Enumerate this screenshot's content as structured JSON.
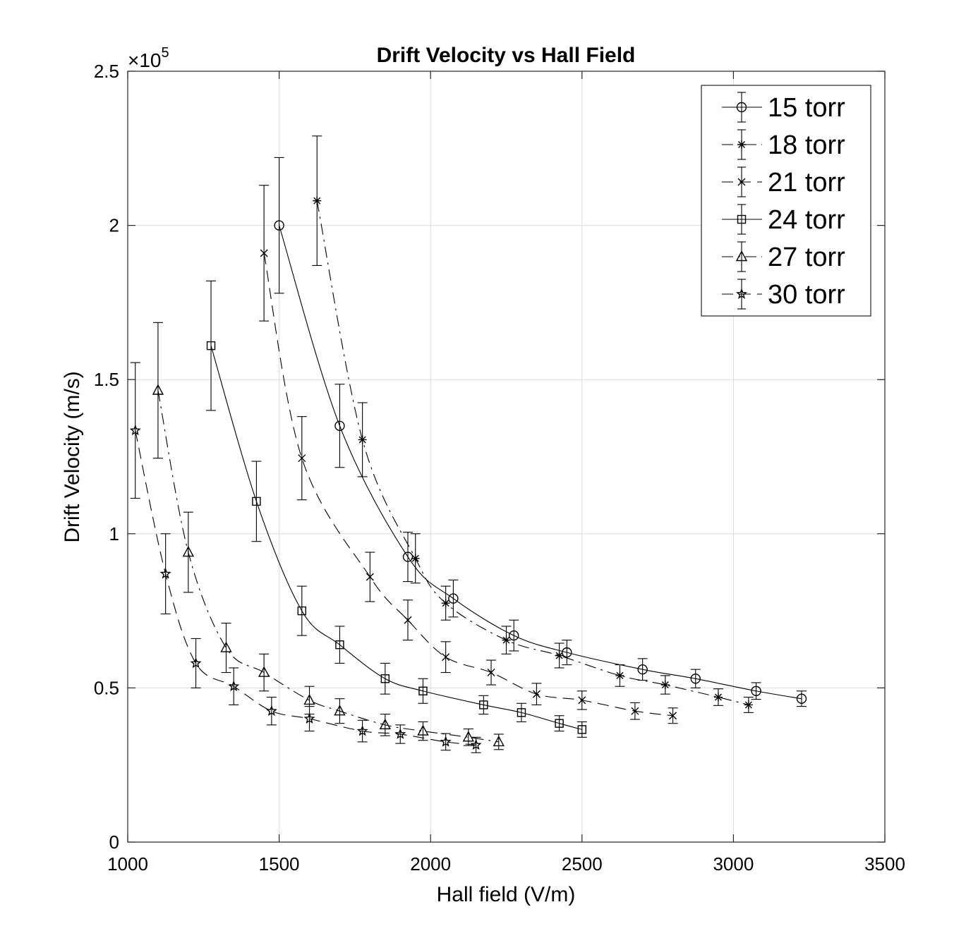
{
  "chart_data": {
    "type": "line",
    "title": "Drift Velocity vs Hall Field",
    "xlabel": "Hall field (V/m)",
    "ylabel": "Drift Velocity (m/s)",
    "xlim": [
      1000,
      3500
    ],
    "ylim": [
      0,
      2.5
    ],
    "y_multiplier": "×10",
    "y_multiplier_exp": "5",
    "x_ticks": [
      1000,
      1500,
      2000,
      2500,
      3000,
      3500
    ],
    "x_tick_labels": [
      "1000",
      "1500",
      "2000",
      "2500",
      "3000",
      "3500"
    ],
    "y_ticks": [
      0,
      0.5,
      1,
      1.5,
      2,
      2.5
    ],
    "y_tick_labels": [
      "0",
      "0.5",
      "1",
      "1.5",
      "2",
      "2.5"
    ],
    "grid": true,
    "legend_position": "top-right",
    "series": [
      {
        "name": "15 torr",
        "marker": "circle",
        "linestyle": "solid",
        "x": [
          1500,
          1700,
          1925,
          2075,
          2275,
          2450,
          2700,
          2875,
          3075,
          3225
        ],
        "y": [
          2.0,
          1.35,
          0.925,
          0.79,
          0.67,
          0.615,
          0.56,
          0.53,
          0.49,
          0.465
        ],
        "err": [
          0.22,
          0.135,
          0.08,
          0.06,
          0.05,
          0.04,
          0.035,
          0.03,
          0.027,
          0.025
        ]
      },
      {
        "name": "18 torr",
        "marker": "asterisk",
        "linestyle": "dashdot",
        "x": [
          1625,
          1775,
          1950,
          2050,
          2250,
          2425,
          2625,
          2775,
          2950,
          3050
        ],
        "y": [
          2.08,
          1.305,
          0.92,
          0.775,
          0.655,
          0.605,
          0.54,
          0.51,
          0.47,
          0.445
        ],
        "err": [
          0.21,
          0.12,
          0.08,
          0.055,
          0.045,
          0.04,
          0.035,
          0.03,
          0.027,
          0.025
        ]
      },
      {
        "name": "21 torr",
        "marker": "cross",
        "linestyle": "dashed",
        "x": [
          1450,
          1575,
          1800,
          1925,
          2050,
          2200,
          2350,
          2500,
          2675,
          2800
        ],
        "y": [
          1.91,
          1.245,
          0.86,
          0.72,
          0.6,
          0.55,
          0.48,
          0.46,
          0.425,
          0.41
        ],
        "err": [
          0.22,
          0.135,
          0.08,
          0.065,
          0.05,
          0.04,
          0.035,
          0.03,
          0.027,
          0.025
        ]
      },
      {
        "name": "24 torr",
        "marker": "square",
        "linestyle": "solid",
        "x": [
          1275,
          1425,
          1575,
          1700,
          1850,
          1975,
          2175,
          2300,
          2425,
          2500
        ],
        "y": [
          1.61,
          1.105,
          0.75,
          0.64,
          0.53,
          0.49,
          0.445,
          0.42,
          0.385,
          0.365
        ],
        "err": [
          0.21,
          0.13,
          0.08,
          0.06,
          0.05,
          0.04,
          0.03,
          0.03,
          0.025,
          0.025
        ]
      },
      {
        "name": "27 torr",
        "marker": "triangle",
        "linestyle": "dashdot",
        "x": [
          1100,
          1200,
          1325,
          1450,
          1600,
          1700,
          1850,
          1975,
          2125,
          2225
        ],
        "y": [
          1.465,
          0.94,
          0.63,
          0.55,
          0.46,
          0.425,
          0.38,
          0.36,
          0.34,
          0.325
        ],
        "err": [
          0.22,
          0.13,
          0.08,
          0.06,
          0.045,
          0.04,
          0.035,
          0.03,
          0.027,
          0.025
        ]
      },
      {
        "name": "30 torr",
        "marker": "star",
        "linestyle": "dashed",
        "x": [
          1025,
          1125,
          1225,
          1350,
          1475,
          1600,
          1775,
          1900,
          2050,
          2150
        ],
        "y": [
          1.335,
          0.87,
          0.58,
          0.505,
          0.425,
          0.4,
          0.36,
          0.35,
          0.325,
          0.315
        ],
        "err": [
          0.22,
          0.13,
          0.08,
          0.06,
          0.045,
          0.04,
          0.035,
          0.03,
          0.027,
          0.025
        ]
      }
    ]
  }
}
